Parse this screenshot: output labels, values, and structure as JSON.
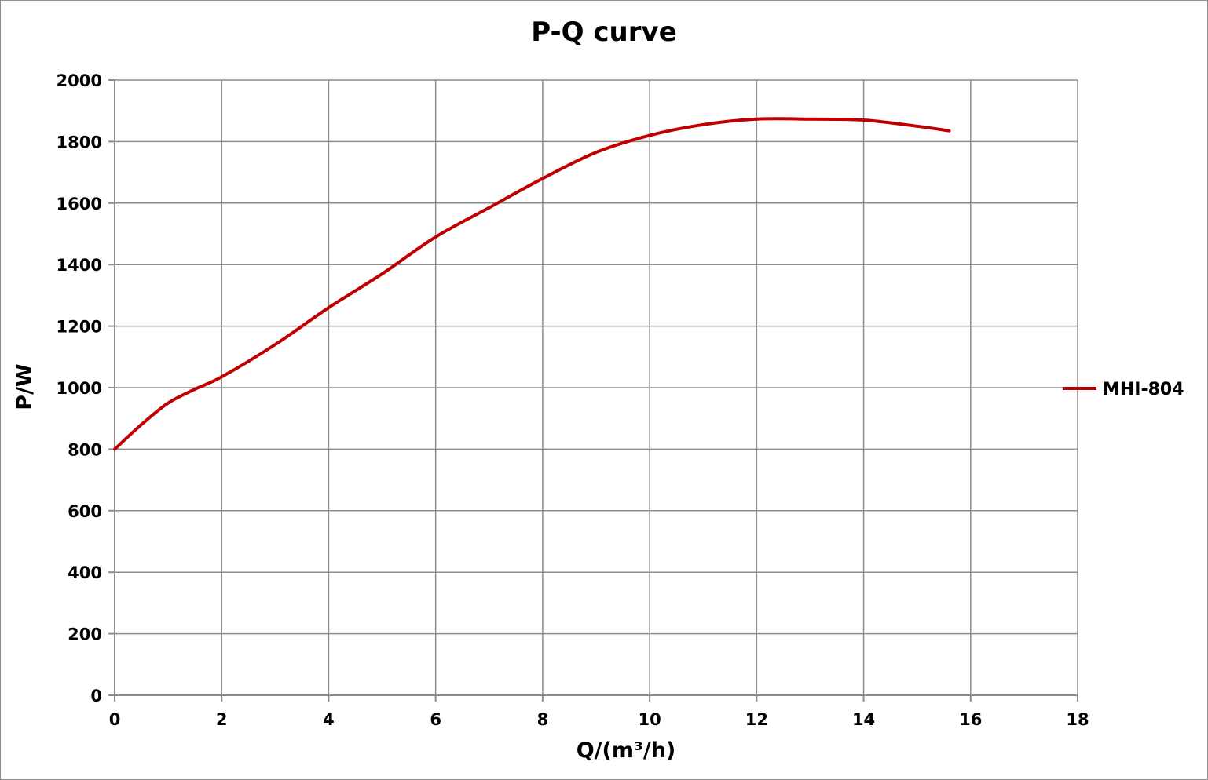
{
  "chart_data": {
    "type": "line",
    "title": "P-Q  curve",
    "xlabel": "Q/(m³/h)",
    "ylabel": "P/W",
    "xlim": [
      0,
      18
    ],
    "ylim": [
      0,
      2000
    ],
    "x_ticks": [
      "0",
      "2",
      "4",
      "6",
      "8",
      "10",
      "12",
      "14",
      "16",
      "18"
    ],
    "y_ticks": [
      "0",
      "200",
      "400",
      "600",
      "800",
      "1000",
      "1200",
      "1400",
      "1600",
      "1800",
      "2000"
    ],
    "grid": true,
    "legend_position": "right",
    "series": [
      {
        "name": "MHI-804",
        "color": "#c00000",
        "x": [
          0,
          0.5,
          1,
          1.5,
          2,
          3,
          4,
          5,
          6,
          7,
          8,
          9,
          10,
          11,
          12,
          13,
          14,
          15,
          15.6
        ],
        "y": [
          800,
          880,
          950,
          995,
          1035,
          1140,
          1260,
          1370,
          1490,
          1585,
          1680,
          1765,
          1820,
          1855,
          1873,
          1873,
          1870,
          1850,
          1835
        ]
      }
    ]
  }
}
